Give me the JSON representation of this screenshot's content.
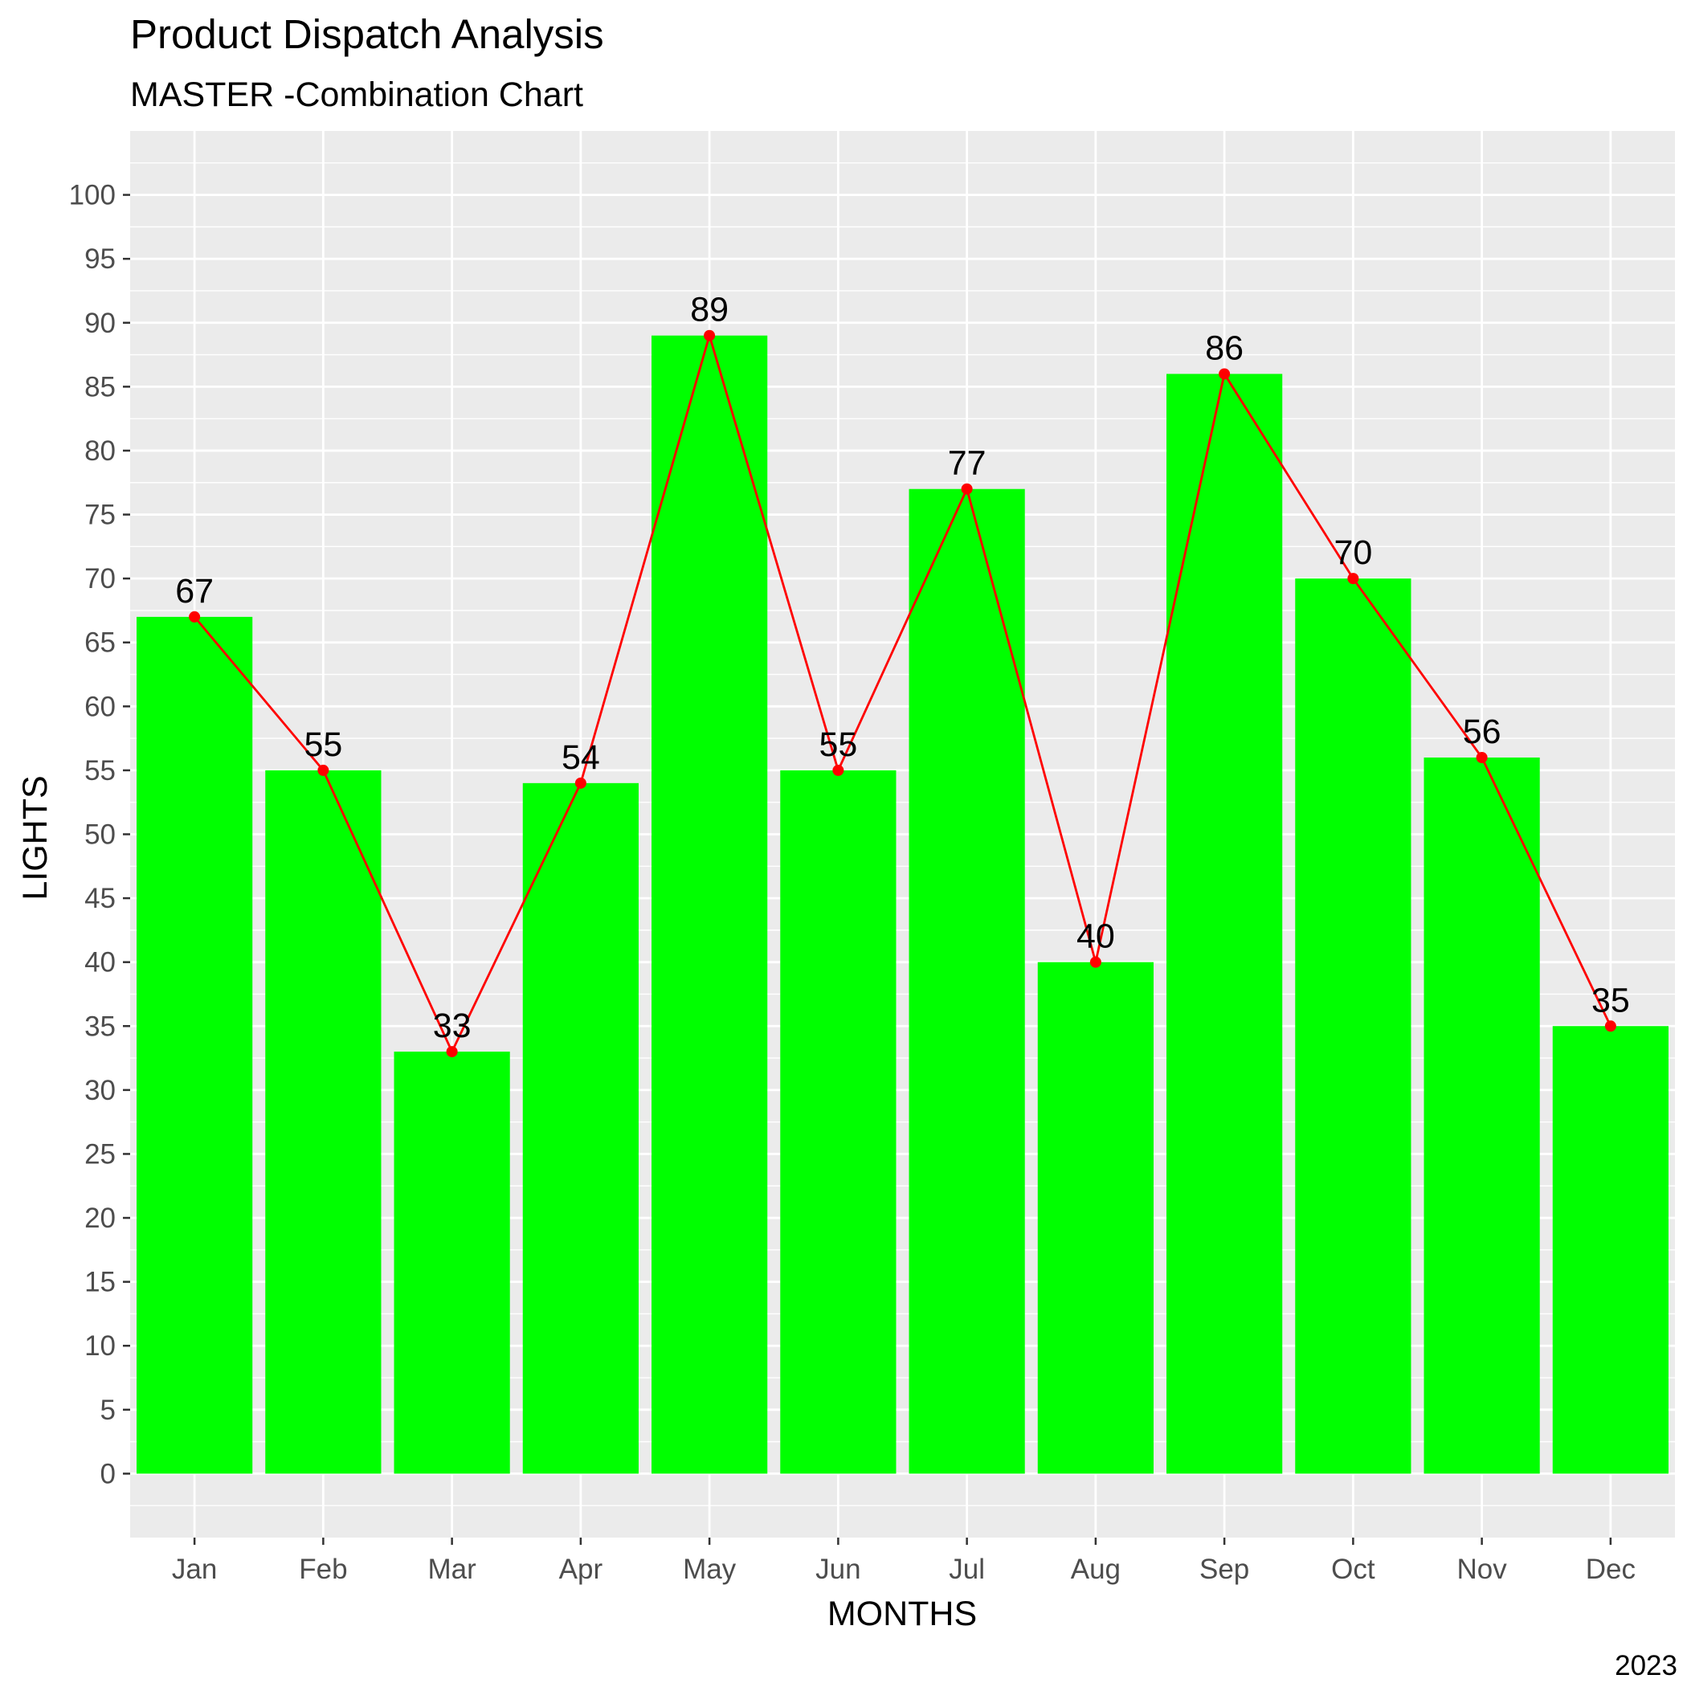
{
  "chart_data": {
    "type": "bar",
    "title": "Product Dispatch Analysis",
    "subtitle": "MASTER -Combination Chart",
    "caption": "2023",
    "xlabel": "MONTHS",
    "ylabel": "LIGHTS",
    "categories": [
      "Jan",
      "Feb",
      "Mar",
      "Apr",
      "May",
      "Jun",
      "Jul",
      "Aug",
      "Sep",
      "Oct",
      "Nov",
      "Dec"
    ],
    "series": [
      {
        "type": "bar",
        "color": "#00ff00",
        "values": [
          67,
          55,
          33,
          54,
          89,
          55,
          77,
          40,
          86,
          70,
          56,
          35
        ]
      },
      {
        "type": "line",
        "color": "#ff0000",
        "values": [
          67,
          55,
          33,
          54,
          89,
          55,
          77,
          40,
          86,
          70,
          56,
          35
        ]
      }
    ],
    "data_labels": [
      "67",
      "55",
      "33",
      "54",
      "89",
      "55",
      "77",
      "40",
      "86",
      "70",
      "56",
      "35"
    ],
    "ylim": [
      -5,
      105
    ],
    "yticks": [
      0,
      5,
      10,
      15,
      20,
      25,
      30,
      35,
      40,
      45,
      50,
      55,
      60,
      65,
      70,
      75,
      80,
      85,
      90,
      95,
      100
    ],
    "ytick_labels": [
      "0",
      "5",
      "10",
      "15",
      "20",
      "25",
      "30",
      "35",
      "40",
      "45",
      "50",
      "55",
      "60",
      "65",
      "70",
      "75",
      "80",
      "85",
      "90",
      "95",
      "100"
    ],
    "grid": true,
    "legend": "none",
    "panel_background": "#ebebeb"
  }
}
